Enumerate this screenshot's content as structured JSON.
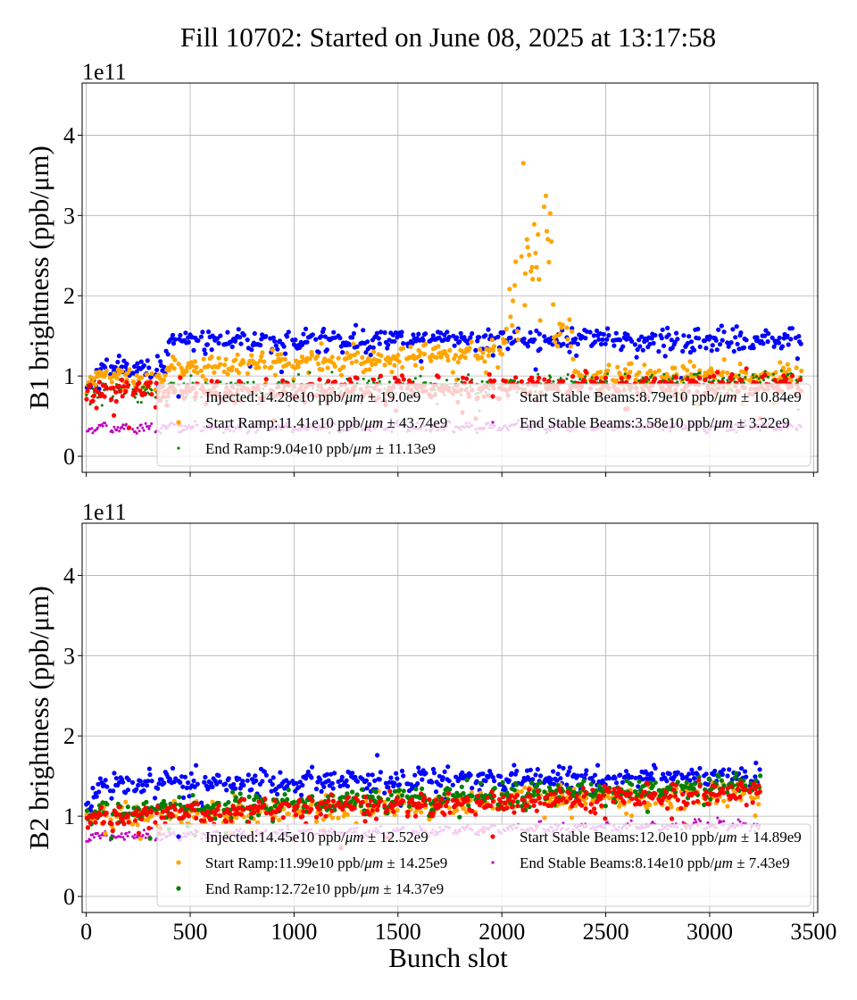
{
  "title": "Fill 10702: Started on June 08, 2025 at 13:17:58",
  "xlabel": "Bunch slot",
  "colors": {
    "injected": "#0000ff",
    "start_ramp": "#ffa500",
    "end_ramp": "#008000",
    "start_stable": "#ff0000",
    "end_stable": "#bf00bf"
  },
  "chart_data": [
    {
      "type": "scatter",
      "panel": "B1",
      "ylabel": "B1 brightness (ppb/μm)",
      "offset_label": "1e11",
      "xlim": [
        -20,
        3520
      ],
      "ylim": [
        -0.2,
        4.65
      ],
      "xticks": [
        0,
        500,
        1000,
        1500,
        2000,
        2500,
        3000,
        3500
      ],
      "yticks": [
        0,
        1,
        2,
        3,
        4
      ],
      "show_xtick_labels": false,
      "grid": true,
      "legend_position": "lower-center",
      "series": [
        {
          "key": "injected",
          "name": "Injected:14.28e10 ppb/μm ± 19.0e9",
          "label_main": "Injected:14.28e10 ppb/",
          "label_tail": " ± 19.0e9",
          "mean": 1.43,
          "std": 0.19,
          "marker": "large",
          "profile": [
            [
              0,
              0.85
            ],
            [
              80,
              1.1
            ],
            [
              380,
              1.1
            ],
            [
              400,
              1.45
            ],
            [
              3440,
              1.45
            ]
          ]
        },
        {
          "key": "start_ramp",
          "name": "Start Ramp:11.41e10 ppb/μm ± 43.74e9",
          "label_main": "Start Ramp:11.41e10 ppb/",
          "label_tail": " ± 43.74e9",
          "mean": 1.14,
          "std": 0.437,
          "marker": "large",
          "profile": [
            [
              0,
              0.85
            ],
            [
              60,
              1.0
            ],
            [
              380,
              0.95
            ],
            [
              400,
              1.1
            ],
            [
              2000,
              1.3
            ],
            [
              2100,
              2.4
            ],
            [
              2230,
              3.0
            ],
            [
              2250,
              1.5
            ],
            [
              2330,
              1.6
            ],
            [
              2350,
              1.0
            ],
            [
              3440,
              1.0
            ]
          ]
        },
        {
          "key": "end_ramp",
          "name": "End Ramp:9.04e10 ppb/μm ± 11.13e9",
          "label_main": "End Ramp:9.04e10 ppb/",
          "label_tail": " ± 11.13e9",
          "mean": 0.9,
          "std": 0.11,
          "marker": "small",
          "profile": [
            [
              0,
              0.8
            ],
            [
              3440,
              0.95
            ]
          ]
        },
        {
          "key": "start_stable",
          "name": "Start Stable Beams:8.79e10 ppb/μm ± 10.84e9",
          "label_main": "Start Stable Beams:8.79e10 ppb/",
          "label_tail": " ± 10.84e9",
          "mean": 0.88,
          "std": 0.108,
          "marker": "large",
          "profile": [
            [
              0,
              0.8
            ],
            [
              3440,
              0.9
            ]
          ]
        },
        {
          "key": "end_stable",
          "name": "End Stable Beams:3.58e10 ppb/μm ± 3.22e9",
          "label_main": "End Stable Beams:3.58e10 ppb/",
          "label_tail": " ± 3.22e9",
          "mean": 0.36,
          "std": 0.032,
          "marker": "small",
          "profile": [
            [
              0,
              0.36
            ],
            [
              3440,
              0.38
            ]
          ]
        }
      ]
    },
    {
      "type": "scatter",
      "panel": "B2",
      "ylabel": "B2 brightness (ppb/μm)",
      "offset_label": "1e11",
      "xlim": [
        -20,
        3520
      ],
      "ylim": [
        -0.2,
        4.65
      ],
      "xticks": [
        0,
        500,
        1000,
        1500,
        2000,
        2500,
        3000,
        3500
      ],
      "xtick_labels": [
        "0",
        "500",
        "1000",
        "1500",
        "2000",
        "2500",
        "3000",
        "3500"
      ],
      "yticks": [
        0,
        1,
        2,
        3,
        4
      ],
      "show_xtick_labels": true,
      "grid": true,
      "legend_position": "lower-center",
      "series": [
        {
          "key": "injected",
          "name": "Injected:14.45e10 ppb/μm ± 12.52e9",
          "label_main": "Injected:14.45e10 ppb/",
          "label_tail": " ± 12.52e9",
          "mean": 1.45,
          "std": 0.125,
          "marker": "large",
          "profile": [
            [
              0,
              1.05
            ],
            [
              60,
              1.4
            ],
            [
              3240,
              1.5
            ]
          ]
        },
        {
          "key": "start_ramp",
          "name": "Start Ramp:11.99e10 ppb/μm ± 14.25e9",
          "label_main": "Start Ramp:11.99e10 ppb/",
          "label_tail": " ± 14.25e9",
          "mean": 1.2,
          "std": 0.1425,
          "marker": "large",
          "profile": [
            [
              0,
              1.0
            ],
            [
              3240,
              1.3
            ]
          ]
        },
        {
          "key": "end_ramp",
          "name": "End Ramp:12.72e10 ppb/μm ± 14.37e9",
          "label_main": "End Ramp:12.72e10 ppb/",
          "label_tail": " ± 14.37e9",
          "mean": 1.27,
          "std": 0.1437,
          "marker": "large",
          "profile": [
            [
              0,
              1.05
            ],
            [
              3240,
              1.4
            ]
          ]
        },
        {
          "key": "start_stable",
          "name": "Start Stable Beams:12.0e10 ppb/μm ± 14.89e9",
          "label_main": "Start Stable Beams:12.0e10 ppb/",
          "label_tail": " ± 14.89e9",
          "mean": 1.2,
          "std": 0.1489,
          "marker": "large",
          "profile": [
            [
              0,
              1.0
            ],
            [
              3240,
              1.3
            ]
          ]
        },
        {
          "key": "end_stable",
          "name": "End Stable Beams:8.14e10 ppb/μm ± 7.43e9",
          "label_main": "End Stable Beams:8.14e10 ppb/",
          "label_tail": " ± 7.43e9",
          "mean": 0.81,
          "std": 0.0743,
          "marker": "small",
          "profile": [
            [
              0,
              0.75
            ],
            [
              3240,
              0.9
            ]
          ]
        }
      ]
    }
  ]
}
